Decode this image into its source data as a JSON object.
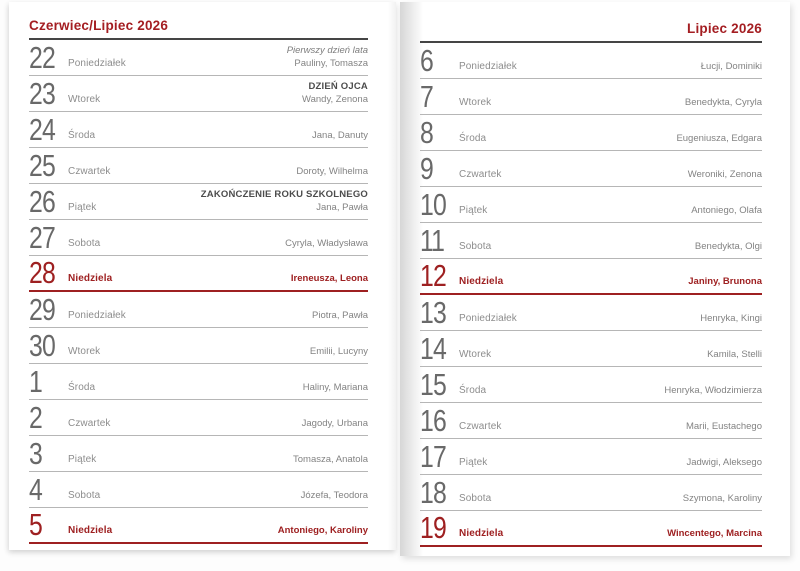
{
  "colors": {
    "sunday_red": "#9e2021",
    "header_red": "#a41e22",
    "rule_gray": "#b6b6b6",
    "header_rule_dark": "#454545"
  },
  "pages": [
    {
      "side": "left",
      "header": "Czerwiec/Lipiec 2026",
      "rows": [
        {
          "day": "22",
          "weekday": "Poniedziałek",
          "special": "Pierwszy dzień lata",
          "special_style": "italic",
          "names": "Pauliny, Tomasza",
          "sunday": false
        },
        {
          "day": "23",
          "weekday": "Wtorek",
          "special": "DZIEŃ OJCA",
          "special_style": "bold",
          "names": "Wandy, Zenona",
          "sunday": false
        },
        {
          "day": "24",
          "weekday": "Środa",
          "names": "Jana, Danuty",
          "sunday": false
        },
        {
          "day": "25",
          "weekday": "Czwartek",
          "names": "Doroty, Wilhelma",
          "sunday": false
        },
        {
          "day": "26",
          "weekday": "Piątek",
          "special": "ZAKOŃCZENIE ROKU SZKOLNEGO",
          "special_style": "bold",
          "names": "Jana, Pawła",
          "sunday": false
        },
        {
          "day": "27",
          "weekday": "Sobota",
          "names": "Cyryla, Władysława",
          "sunday": false
        },
        {
          "day": "28",
          "weekday": "Niedziela",
          "names": "Ireneusza, Leona",
          "sunday": true
        },
        {
          "day": "29",
          "weekday": "Poniedziałek",
          "names": "Piotra, Pawła",
          "sunday": false
        },
        {
          "day": "30",
          "weekday": "Wtorek",
          "names": "Emilii, Lucyny",
          "sunday": false
        },
        {
          "day": "1",
          "weekday": "Środa",
          "names": "Haliny, Mariana",
          "sunday": false
        },
        {
          "day": "2",
          "weekday": "Czwartek",
          "names": "Jagody, Urbana",
          "sunday": false
        },
        {
          "day": "3",
          "weekday": "Piątek",
          "names": "Tomasza, Anatola",
          "sunday": false
        },
        {
          "day": "4",
          "weekday": "Sobota",
          "names": "Józefa, Teodora",
          "sunday": false
        },
        {
          "day": "5",
          "weekday": "Niedziela",
          "names": "Antoniego, Karoliny",
          "sunday": true
        }
      ]
    },
    {
      "side": "right",
      "header": "Lipiec 2026",
      "rows": [
        {
          "day": "6",
          "weekday": "Poniedziałek",
          "names": "Łucji, Dominiki",
          "sunday": false
        },
        {
          "day": "7",
          "weekday": "Wtorek",
          "names": "Benedykta, Cyryla",
          "sunday": false
        },
        {
          "day": "8",
          "weekday": "Środa",
          "names": "Eugeniusza, Edgara",
          "sunday": false
        },
        {
          "day": "9",
          "weekday": "Czwartek",
          "names": "Weroniki, Zenona",
          "sunday": false
        },
        {
          "day": "10",
          "weekday": "Piątek",
          "names": "Antoniego, Olafa",
          "sunday": false
        },
        {
          "day": "11",
          "weekday": "Sobota",
          "names": "Benedykta, Olgi",
          "sunday": false
        },
        {
          "day": "12",
          "weekday": "Niedziela",
          "names": "Janiny, Brunona",
          "sunday": true
        },
        {
          "day": "13",
          "weekday": "Poniedziałek",
          "names": "Henryka, Kingi",
          "sunday": false
        },
        {
          "day": "14",
          "weekday": "Wtorek",
          "names": "Kamila, Stelli",
          "sunday": false
        },
        {
          "day": "15",
          "weekday": "Środa",
          "names": "Henryka, Włodzimierza",
          "sunday": false
        },
        {
          "day": "16",
          "weekday": "Czwartek",
          "names": "Marii, Eustachego",
          "sunday": false
        },
        {
          "day": "17",
          "weekday": "Piątek",
          "names": "Jadwigi, Aleksego",
          "sunday": false
        },
        {
          "day": "18",
          "weekday": "Sobota",
          "names": "Szymona, Karoliny",
          "sunday": false
        },
        {
          "day": "19",
          "weekday": "Niedziela",
          "names": "Wincentego, Marcina",
          "sunday": true
        }
      ]
    }
  ]
}
